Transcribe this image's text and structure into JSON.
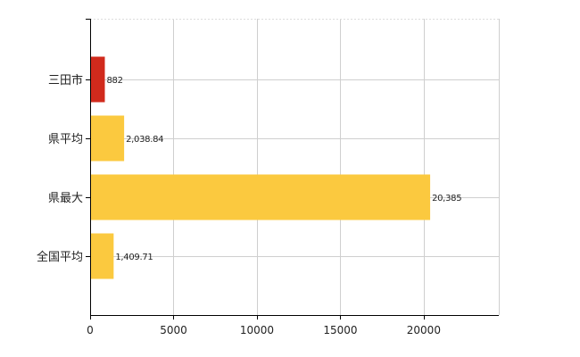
{
  "chart_data": {
    "type": "bar",
    "orientation": "horizontal",
    "title": "",
    "xlabel": "",
    "ylabel": "",
    "categories": [
      "三田市",
      "県平均",
      "県最大",
      "全国平均"
    ],
    "values": [
      882,
      2038.84,
      20385,
      1409.71
    ],
    "data_labels": [
      "882",
      "2,038.84",
      "20,385",
      "1,409.71"
    ],
    "bar_colors": [
      "#d12a1c",
      "#fbc93f",
      "#fbc93f",
      "#fbc93f"
    ],
    "xlim": [
      0,
      24500
    ],
    "x_ticks": [
      0,
      5000,
      10000,
      15000,
      20000
    ],
    "x_tick_labels": [
      "0",
      "5000",
      "10000",
      "15000",
      "20000"
    ],
    "grid": true,
    "legend": "none"
  }
}
